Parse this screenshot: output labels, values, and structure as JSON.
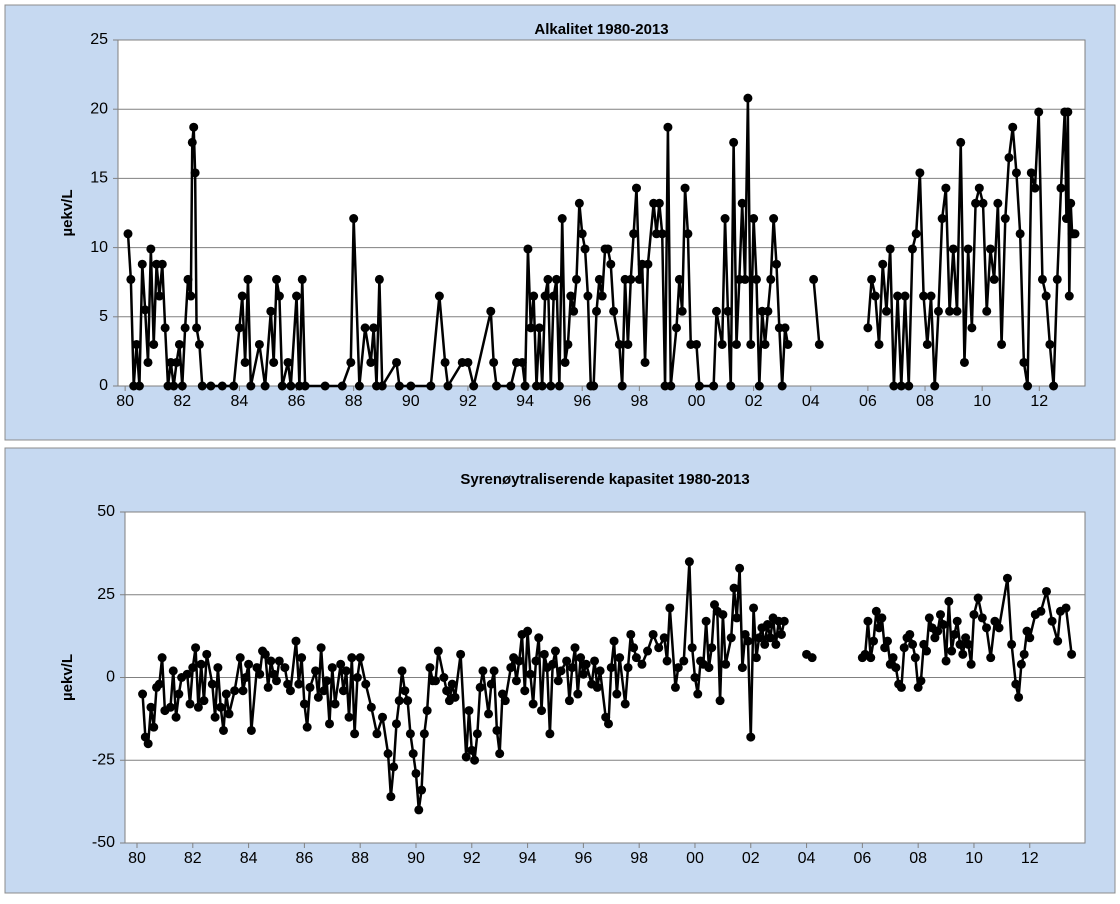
{
  "chart_data": [
    {
      "type": "line",
      "title": "Alkalitet 1980-2013",
      "y_label": "µekv/L",
      "color": "#000000",
      "grid": true,
      "xlim": [
        1979.75,
        2013.6
      ],
      "ylim": [
        0,
        25
      ],
      "yticks": [
        0,
        5,
        10,
        15,
        20,
        25
      ],
      "xticks": [
        {
          "value": 1980,
          "label": "80"
        },
        {
          "value": 1982,
          "label": "82"
        },
        {
          "value": 1984,
          "label": "84"
        },
        {
          "value": 1986,
          "label": "86"
        },
        {
          "value": 1988,
          "label": "88"
        },
        {
          "value": 1990,
          "label": "90"
        },
        {
          "value": 1992,
          "label": "92"
        },
        {
          "value": 1994,
          "label": "94"
        },
        {
          "value": 1996,
          "label": "96"
        },
        {
          "value": 1998,
          "label": "98"
        },
        {
          "value": 2000,
          "label": "00"
        },
        {
          "value": 2002,
          "label": "02"
        },
        {
          "value": 2004,
          "label": "04"
        },
        {
          "value": 2006,
          "label": "06"
        },
        {
          "value": 2008,
          "label": "08"
        },
        {
          "value": 2010,
          "label": "10"
        },
        {
          "value": 2012,
          "label": "12"
        }
      ],
      "x": [
        1980.1,
        1980.2,
        1980.3,
        1980.4,
        1980.5,
        1980.6,
        1980.7,
        1980.8,
        1980.9,
        1981.0,
        1981.1,
        1981.2,
        1981.3,
        1981.4,
        1981.5,
        1981.6,
        1981.7,
        1981.8,
        1981.9,
        1982.0,
        1982.1,
        1982.2,
        1982.3,
        1982.35,
        1982.4,
        1982.45,
        1982.5,
        1982.6,
        1982.7,
        1983.0,
        1983.4,
        1983.8,
        1984.0,
        1984.1,
        1984.2,
        1984.3,
        1984.4,
        1984.7,
        1984.9,
        1985.1,
        1985.2,
        1985.3,
        1985.4,
        1985.5,
        1985.7,
        1985.8,
        1986.0,
        1986.1,
        1986.2,
        1986.3,
        1987.0,
        1987.6,
        1987.9,
        1988.0,
        1988.2,
        1988.4,
        1988.6,
        1988.7,
        1988.8,
        1988.9,
        1989.0,
        1989.5,
        1989.6,
        1990.0,
        1990.7,
        1991.0,
        1991.2,
        1991.3,
        1991.8,
        1992.0,
        1992.2,
        1992.8,
        1992.9,
        1993.0,
        1993.5,
        1993.7,
        1993.9,
        1994.0,
        1994.1,
        1994.2,
        1994.3,
        1994.4,
        1994.5,
        1994.6,
        1994.7,
        1994.8,
        1994.9,
        1995.0,
        1995.1,
        1995.2,
        1995.3,
        1995.4,
        1995.5,
        1995.6,
        1995.7,
        1995.8,
        1995.9,
        1996.0,
        1996.1,
        1996.2,
        1996.3,
        1996.4,
        1996.5,
        1996.6,
        1996.7,
        1996.8,
        1996.9,
        1997.0,
        1997.1,
        1997.3,
        1997.4,
        1997.5,
        1997.6,
        1997.7,
        1997.8,
        1997.9,
        1998.0,
        1998.1,
        1998.2,
        1998.3,
        1998.5,
        1998.6,
        1998.7,
        1998.8,
        1998.9,
        1999.0,
        1999.1,
        1999.3,
        1999.4,
        1999.5,
        1999.6,
        1999.7,
        1999.8,
        2000.0,
        2000.1,
        2000.6,
        2000.7,
        2000.9,
        2001.0,
        2001.1,
        2001.2,
        2001.3,
        2001.4,
        2001.5,
        2001.6,
        2001.7,
        2001.8,
        2001.9,
        2002.0,
        2002.1,
        2002.2,
        2002.3,
        2002.4,
        2002.5,
        2002.6,
        2002.7,
        2002.8,
        2002.9,
        2003.0,
        2003.1,
        2003.2,
        2003.6,
        2004.1,
        2004.3,
        2005.0,
        2006.0,
        2006.13,
        2006.26,
        2006.39,
        2006.52,
        2006.65,
        2006.78,
        2006.91,
        2007.04,
        2007.17,
        2007.3,
        2007.43,
        2007.56,
        2007.69,
        2007.82,
        2007.95,
        2008.08,
        2008.21,
        2008.34,
        2008.47,
        2008.6,
        2008.73,
        2008.86,
        2008.99,
        2009.12,
        2009.25,
        2009.38,
        2009.51,
        2009.64,
        2009.77,
        2009.9,
        2010.03,
        2010.16,
        2010.29,
        2010.42,
        2010.55,
        2010.68,
        2010.81,
        2010.94,
        2011.07,
        2011.2,
        2011.33,
        2011.46,
        2011.59,
        2011.72,
        2011.85,
        2011.98,
        2012.11,
        2012.24,
        2012.37,
        2012.5,
        2012.63,
        2012.76,
        2012.89,
        2012.95,
        2013.0,
        2013.05,
        2013.1,
        2013.15,
        2013.2,
        2013.25
      ],
      "values": [
        11,
        7.7,
        0,
        3,
        0,
        8.8,
        5.5,
        1.7,
        9.9,
        3,
        8.8,
        6.5,
        8.8,
        4.2,
        0,
        1.7,
        0,
        1.7,
        3,
        0,
        4.2,
        7.7,
        6.5,
        17.6,
        18.7,
        15.4,
        4.2,
        3,
        0,
        0,
        0,
        0,
        4.2,
        6.5,
        1.7,
        7.7,
        0,
        3,
        0,
        5.4,
        1.7,
        7.7,
        6.5,
        0,
        1.7,
        0,
        6.5,
        0,
        7.7,
        0,
        0,
        0,
        1.7,
        12.1,
        0,
        4.2,
        1.7,
        4.2,
        0,
        7.7,
        0,
        1.7,
        0,
        0,
        0,
        6.5,
        1.7,
        0,
        1.7,
        1.7,
        0,
        5.4,
        1.7,
        0,
        0,
        1.7,
        1.7,
        0,
        9.9,
        4.2,
        6.5,
        0,
        4.2,
        0,
        6.5,
        7.7,
        0,
        6.5,
        7.7,
        0,
        12.1,
        1.7,
        3,
        6.5,
        5.4,
        7.7,
        13.2,
        11,
        9.9,
        6.5,
        0,
        0,
        5.4,
        7.7,
        6.5,
        9.9,
        9.9,
        8.8,
        5.4,
        3,
        0,
        7.7,
        3,
        7.7,
        11,
        14.3,
        7.7,
        8.8,
        1.7,
        8.8,
        13.2,
        11,
        13.2,
        11,
        0,
        18.7,
        0,
        4.2,
        7.7,
        5.4,
        14.3,
        11,
        3,
        3,
        0,
        0,
        5.4,
        3,
        12.1,
        5.4,
        0,
        17.6,
        3,
        7.7,
        13.2,
        7.7,
        20.8,
        3,
        12.1,
        7.7,
        0,
        5.4,
        3,
        5.4,
        7.7,
        12.1,
        8.8,
        4.2,
        0,
        4.2,
        3,
        null,
        7.7,
        3,
        null,
        4.2,
        7.7,
        6.5,
        3,
        8.8,
        5.4,
        9.9,
        0,
        6.5,
        0,
        6.5,
        0,
        9.9,
        11,
        15.4,
        6.5,
        3,
        6.5,
        0,
        5.4,
        12.1,
        14.3,
        5.4,
        9.9,
        5.4,
        17.6,
        1.7,
        9.9,
        4.2,
        13.2,
        14.3,
        13.2,
        5.4,
        9.9,
        7.7,
        13.2,
        3,
        12.1,
        16.5,
        18.7,
        15.4,
        11,
        1.7,
        0,
        15.4,
        14.3,
        19.8,
        7.7,
        6.5,
        3,
        0,
        7.7,
        14.3,
        19.8,
        12.1,
        19.8,
        6.5,
        13.2,
        11,
        11,
        11
      ]
    },
    {
      "type": "line",
      "title": "Syrenøytraliserende kapasitet 1980-2013",
      "y_label": "µekv/L",
      "color": "#000000",
      "grid": true,
      "xlim": [
        1979.57,
        2013.98
      ],
      "ylim": [
        -50,
        50
      ],
      "yticks": [
        -50,
        -25,
        0,
        25,
        50
      ],
      "xticks": [
        {
          "value": 1980,
          "label": "80"
        },
        {
          "value": 1982,
          "label": "82"
        },
        {
          "value": 1984,
          "label": "84"
        },
        {
          "value": 1986,
          "label": "86"
        },
        {
          "value": 1988,
          "label": "88"
        },
        {
          "value": 1990,
          "label": "90"
        },
        {
          "value": 1992,
          "label": "92"
        },
        {
          "value": 1994,
          "label": "94"
        },
        {
          "value": 1996,
          "label": "96"
        },
        {
          "value": 1998,
          "label": "98"
        },
        {
          "value": 2000,
          "label": "00"
        },
        {
          "value": 2002,
          "label": "02"
        },
        {
          "value": 2004,
          "label": "04"
        },
        {
          "value": 2006,
          "label": "06"
        },
        {
          "value": 2008,
          "label": "08"
        },
        {
          "value": 2010,
          "label": "10"
        },
        {
          "value": 2012,
          "label": "12"
        }
      ],
      "x": [
        1980.2,
        1980.3,
        1980.4,
        1980.5,
        1980.6,
        1980.7,
        1980.8,
        1980.9,
        1981.0,
        1981.2,
        1981.3,
        1981.4,
        1981.5,
        1981.6,
        1981.8,
        1981.9,
        1982.0,
        1982.1,
        1982.2,
        1982.3,
        1982.4,
        1982.5,
        1982.7,
        1982.8,
        1982.9,
        1983.0,
        1983.1,
        1983.2,
        1983.3,
        1983.5,
        1983.7,
        1983.8,
        1983.9,
        1984.0,
        1984.1,
        1984.3,
        1984.4,
        1984.5,
        1984.6,
        1984.7,
        1984.8,
        1984.9,
        1985.0,
        1985.1,
        1985.3,
        1985.4,
        1985.5,
        1985.7,
        1985.8,
        1985.9,
        1986.0,
        1986.1,
        1986.2,
        1986.4,
        1986.5,
        1986.6,
        1986.7,
        1986.8,
        1986.9,
        1987.0,
        1987.1,
        1987.3,
        1987.4,
        1987.5,
        1987.6,
        1987.7,
        1987.8,
        1987.9,
        1988.0,
        1988.2,
        1988.4,
        1988.6,
        1988.8,
        1989.0,
        1989.1,
        1989.2,
        1989.3,
        1989.4,
        1989.5,
        1989.6,
        1989.7,
        1989.8,
        1989.9,
        1990.0,
        1990.1,
        1990.2,
        1990.3,
        1990.4,
        1990.5,
        1990.6,
        1990.7,
        1990.8,
        1991.0,
        1991.1,
        1991.2,
        1991.3,
        1991.4,
        1991.6,
        1991.8,
        1991.9,
        1992.0,
        1992.1,
        1992.2,
        1992.3,
        1992.4,
        1992.6,
        1992.7,
        1992.8,
        1992.9,
        1993.0,
        1993.1,
        1993.2,
        1993.4,
        1993.5,
        1993.6,
        1993.7,
        1993.8,
        1993.9,
        1994.0,
        1994.1,
        1994.2,
        1994.3,
        1994.4,
        1994.5,
        1994.6,
        1994.7,
        1994.8,
        1994.9,
        1995.0,
        1995.1,
        1995.2,
        1995.4,
        1995.5,
        1995.6,
        1995.7,
        1995.8,
        1995.9,
        1996.0,
        1996.1,
        1996.3,
        1996.4,
        1996.5,
        1996.6,
        1996.8,
        1996.9,
        1997.0,
        1997.1,
        1997.2,
        1997.3,
        1997.5,
        1997.6,
        1997.7,
        1997.8,
        1997.9,
        1998.1,
        1998.3,
        1998.5,
        1998.7,
        1998.9,
        1999.0,
        1999.1,
        1999.3,
        1999.4,
        1999.6,
        1999.8,
        1999.9,
        2000.0,
        2000.1,
        2000.2,
        2000.3,
        2000.4,
        2000.5,
        2000.6,
        2000.7,
        2000.8,
        2000.9,
        2001.0,
        2001.1,
        2001.3,
        2001.4,
        2001.5,
        2001.6,
        2001.7,
        2001.8,
        2001.9,
        2002.0,
        2002.1,
        2002.2,
        2002.3,
        2002.4,
        2002.5,
        2002.6,
        2002.7,
        2002.8,
        2002.9,
        2003.0,
        2003.1,
        2003.2,
        2003.6,
        2004.0,
        2004.2,
        2005.0,
        2006.0,
        2006.1,
        2006.2,
        2006.3,
        2006.4,
        2006.5,
        2006.6,
        2006.7,
        2006.8,
        2006.9,
        2007.0,
        2007.1,
        2007.2,
        2007.3,
        2007.4,
        2007.5,
        2007.6,
        2007.7,
        2007.8,
        2007.9,
        2008.0,
        2008.1,
        2008.2,
        2008.3,
        2008.4,
        2008.5,
        2008.6,
        2008.7,
        2008.8,
        2008.9,
        2009.0,
        2009.1,
        2009.2,
        2009.3,
        2009.4,
        2009.5,
        2009.6,
        2009.7,
        2009.8,
        2009.9,
        2010.0,
        2010.15,
        2010.3,
        2010.45,
        2010.6,
        2010.75,
        2010.9,
        2011.2,
        2011.35,
        2011.5,
        2011.6,
        2011.7,
        2011.8,
        2011.9,
        2012.0,
        2012.2,
        2012.4,
        2012.6,
        2012.8,
        2013.0,
        2013.1,
        2013.3,
        2013.5
      ],
      "values": [
        -5,
        -18,
        -20,
        -9,
        -15,
        -3,
        -2,
        6,
        -10,
        -9,
        2,
        -12,
        -5,
        0,
        1,
        -8,
        3,
        9,
        -9,
        4,
        -7,
        7,
        -2,
        -12,
        3,
        -9,
        -16,
        -5,
        -11,
        -4,
        6,
        -4,
        0,
        4,
        -16,
        3,
        1,
        8,
        7,
        -3,
        5,
        1,
        -1,
        5,
        3,
        -2,
        -4,
        11,
        -2,
        6,
        -8,
        -15,
        -3,
        2,
        -6,
        9,
        -4,
        -1,
        -14,
        3,
        -8,
        4,
        -4,
        2,
        -12,
        6,
        -17,
        0,
        6,
        -2,
        -9,
        -17,
        -12,
        -23,
        -36,
        -27,
        -14,
        -7,
        2,
        -4,
        -7,
        -17,
        -23,
        -29,
        -40,
        -34,
        -17,
        -10,
        3,
        -1,
        -1,
        8,
        0,
        -4,
        -7,
        -2,
        -6,
        7,
        -24,
        -10,
        -22,
        -25,
        -17,
        -3,
        2,
        -11,
        -2,
        2,
        -16,
        -23,
        -5,
        -7,
        3,
        6,
        -1,
        5,
        13,
        -4,
        14,
        1,
        -8,
        5,
        12,
        -10,
        7,
        3,
        -17,
        4,
        8,
        -1,
        2,
        5,
        -7,
        3,
        9,
        -5,
        6,
        1,
        4,
        -2,
        5,
        -3,
        2,
        -12,
        -14,
        3,
        11,
        -5,
        6,
        -8,
        3,
        13,
        9,
        6,
        4,
        8,
        13,
        9,
        12,
        5,
        21,
        -3,
        3,
        5,
        35,
        9,
        0,
        -5,
        5,
        4,
        17,
        3,
        9,
        22,
        20,
        -7,
        19,
        4,
        12,
        27,
        18,
        33,
        3,
        13,
        11,
        -18,
        21,
        6,
        12,
        15,
        10,
        16,
        12,
        18,
        10,
        17,
        13,
        17,
        null,
        7,
        6,
        null,
        6,
        7,
        17,
        6,
        11,
        20,
        15,
        18,
        9,
        11,
        4,
        6,
        3,
        -2,
        -3,
        9,
        12,
        13,
        10,
        6,
        -3,
        -1,
        10,
        8,
        18,
        15,
        12,
        14,
        19,
        16,
        5,
        23,
        8,
        13,
        17,
        10,
        7,
        12,
        10,
        4,
        19,
        24,
        18,
        15,
        6,
        17,
        15,
        30,
        10,
        -2,
        -6,
        4,
        7,
        14,
        12,
        19,
        20,
        26,
        17,
        11,
        20,
        21,
        7
      ]
    }
  ]
}
